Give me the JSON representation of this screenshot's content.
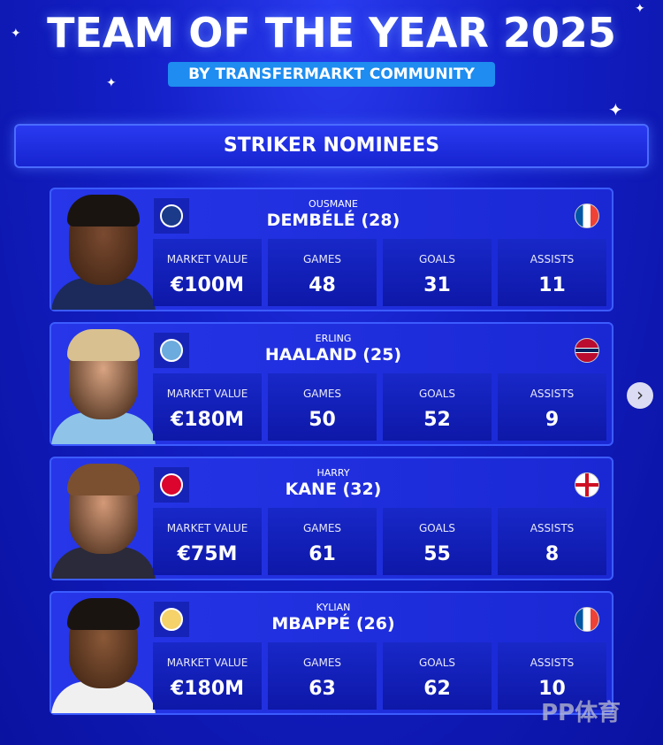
{
  "header": {
    "title": "TEAM OF THE YEAR 2025",
    "subtitle": "BY TRANSFERMARKT COMMUNITY",
    "section": "STRIKER NOMINEES"
  },
  "labels": [
    "MARKET VALUE",
    "GAMES",
    "GOALS",
    "ASSISTS"
  ],
  "players": [
    {
      "first": "OUSMANE",
      "last": "DEMBÉLÉ (28)",
      "club": "psg-crest",
      "flag": "france",
      "values": [
        "€100M",
        "48",
        "31",
        "11"
      ],
      "hair": "#1a1410",
      "kit": "#1b2a5a",
      "skin": "#7a4a30",
      "crest": "#1b3a8a"
    },
    {
      "first": "ERLING",
      "last": "HAALAND (25)",
      "club": "man-city-crest",
      "flag": "norway",
      "values": [
        "€180M",
        "50",
        "52",
        "9"
      ],
      "hair": "#d8c090",
      "kit": "#8fc4e8",
      "skin": "#d9a482",
      "crest": "#6cabdd"
    },
    {
      "first": "HARRY",
      "last": "KANE (32)",
      "club": "bayern-crest",
      "flag": "england",
      "values": [
        "€75M",
        "61",
        "55",
        "8"
      ],
      "hair": "#7a5030",
      "kit": "#2a2a3a",
      "skin": "#d49a78",
      "crest": "#dc052d"
    },
    {
      "first": "KYLIAN",
      "last": "MBAPPÉ (26)",
      "club": "real-madrid-crest",
      "flag": "france",
      "values": [
        "€180M",
        "63",
        "62",
        "10"
      ],
      "hair": "#1a1410",
      "kit": "#f0f0f0",
      "skin": "#8a5838",
      "crest": "#f5d26a"
    }
  ],
  "watermark": "PP体育",
  "next_icon": "chevron-right-icon"
}
